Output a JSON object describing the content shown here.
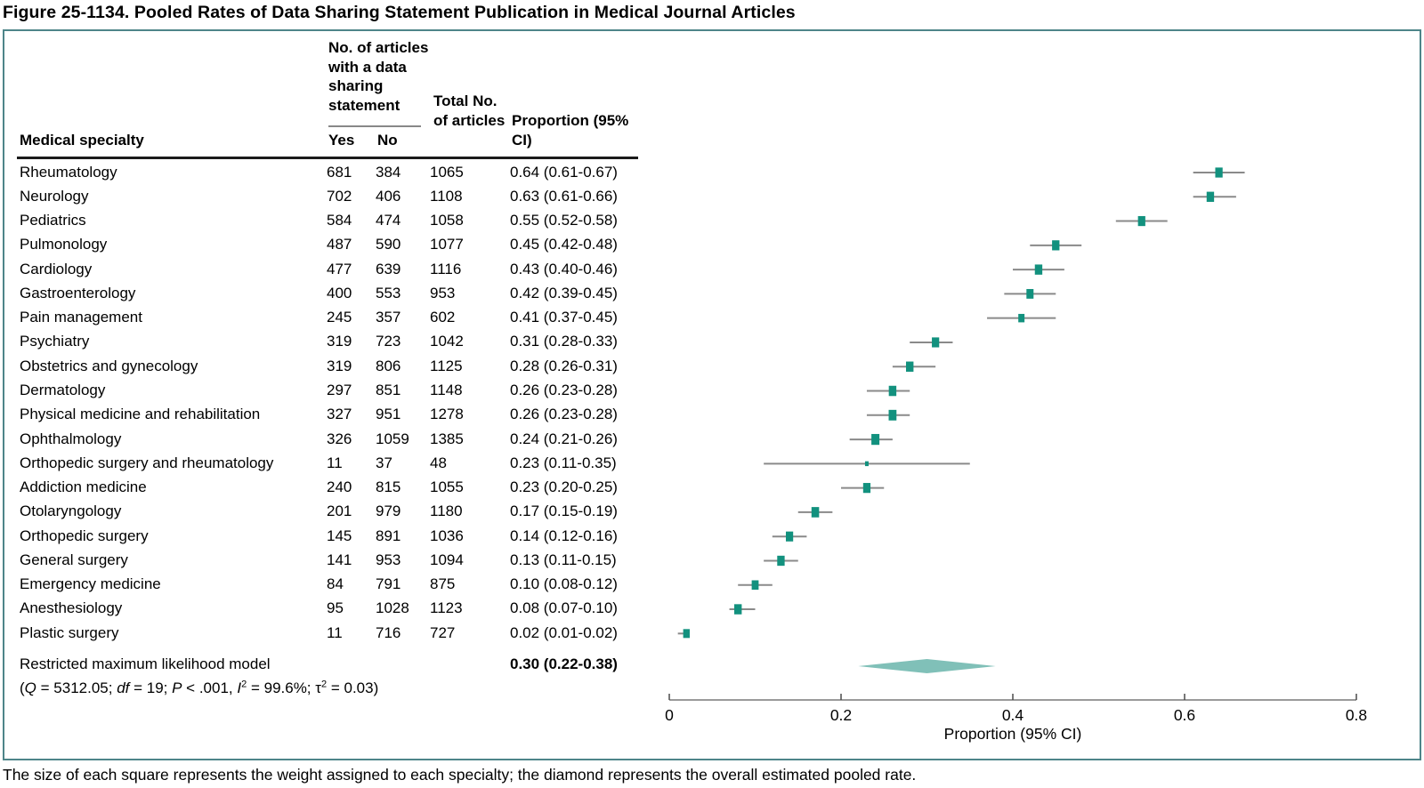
{
  "title": "Figure 25-1134. Pooled Rates of Data Sharing Statement Publication in Medical Journal Articles",
  "footnote": "The size of each square represents the weight assigned to each specialty; the diamond represents the overall estimated pooled rate.",
  "table": {
    "col_specialty": "Medical specialty",
    "col_group": "No. of articles with a data sharing statement",
    "col_yes": "Yes",
    "col_no": "No",
    "col_total": "Total No. of articles",
    "col_proportion": "Proportion (95% CI)"
  },
  "summary": {
    "label": "Restricted maximum likelihood model",
    "proportion_text": "0.30 (0.22-0.38)",
    "stats_segments": [
      [
        "(",
        false
      ],
      [
        "Q",
        true
      ],
      [
        " = 5312.05; ",
        false
      ],
      [
        "df",
        true
      ],
      [
        " = 19; ",
        false
      ],
      [
        "P",
        true
      ],
      [
        " < .001, ",
        false
      ],
      [
        "I",
        true
      ],
      [
        "SUP2",
        false
      ],
      [
        " = 99.6%; τ",
        false
      ],
      [
        "SUP2",
        false
      ],
      [
        " = 0.03)",
        false
      ]
    ]
  },
  "chart_data": {
    "type": "forest",
    "xlabel": "Proportion (95% CI)",
    "xlim": [
      0,
      0.8
    ],
    "xticks": [
      0,
      0.2,
      0.4,
      0.6,
      0.8
    ],
    "xtick_labels": [
      "0",
      "0.2",
      "0.4",
      "0.6",
      "0.8"
    ],
    "rows": [
      {
        "specialty": "Rheumatology",
        "yes": 681,
        "no": 384,
        "total": 1065,
        "proportion": 0.64,
        "ci_low": 0.61,
        "ci_high": 0.67,
        "ci_text": "0.64 (0.61-0.67)"
      },
      {
        "specialty": "Neurology",
        "yes": 702,
        "no": 406,
        "total": 1108,
        "proportion": 0.63,
        "ci_low": 0.61,
        "ci_high": 0.66,
        "ci_text": "0.63 (0.61-0.66)"
      },
      {
        "specialty": "Pediatrics",
        "yes": 584,
        "no": 474,
        "total": 1058,
        "proportion": 0.55,
        "ci_low": 0.52,
        "ci_high": 0.58,
        "ci_text": "0.55 (0.52-0.58)"
      },
      {
        "specialty": "Pulmonology",
        "yes": 487,
        "no": 590,
        "total": 1077,
        "proportion": 0.45,
        "ci_low": 0.42,
        "ci_high": 0.48,
        "ci_text": "0.45 (0.42-0.48)"
      },
      {
        "specialty": "Cardiology",
        "yes": 477,
        "no": 639,
        "total": 1116,
        "proportion": 0.43,
        "ci_low": 0.4,
        "ci_high": 0.46,
        "ci_text": "0.43 (0.40-0.46)"
      },
      {
        "specialty": "Gastroenterology",
        "yes": 400,
        "no": 553,
        "total": 953,
        "proportion": 0.42,
        "ci_low": 0.39,
        "ci_high": 0.45,
        "ci_text": "0.42 (0.39-0.45)"
      },
      {
        "specialty": "Pain management",
        "yes": 245,
        "no": 357,
        "total": 602,
        "proportion": 0.41,
        "ci_low": 0.37,
        "ci_high": 0.45,
        "ci_text": "0.41 (0.37-0.45)"
      },
      {
        "specialty": "Psychiatry",
        "yes": 319,
        "no": 723,
        "total": 1042,
        "proportion": 0.31,
        "ci_low": 0.28,
        "ci_high": 0.33,
        "ci_text": "0.31 (0.28-0.33)"
      },
      {
        "specialty": "Obstetrics and gynecology",
        "yes": 319,
        "no": 806,
        "total": 1125,
        "proportion": 0.28,
        "ci_low": 0.26,
        "ci_high": 0.31,
        "ci_text": "0.28 (0.26-0.31)"
      },
      {
        "specialty": "Dermatology",
        "yes": 297,
        "no": 851,
        "total": 1148,
        "proportion": 0.26,
        "ci_low": 0.23,
        "ci_high": 0.28,
        "ci_text": "0.26 (0.23-0.28)"
      },
      {
        "specialty": "Physical medicine and rehabilitation",
        "yes": 327,
        "no": 951,
        "total": 1278,
        "proportion": 0.26,
        "ci_low": 0.23,
        "ci_high": 0.28,
        "ci_text": "0.26 (0.23-0.28)"
      },
      {
        "specialty": "Ophthalmology",
        "yes": 326,
        "no": 1059,
        "total": 1385,
        "proportion": 0.24,
        "ci_low": 0.21,
        "ci_high": 0.26,
        "ci_text": "0.24 (0.21-0.26)"
      },
      {
        "specialty": "Orthopedic surgery and rheumatology",
        "yes": 11,
        "no": 37,
        "total": 48,
        "proportion": 0.23,
        "ci_low": 0.11,
        "ci_high": 0.35,
        "ci_text": "0.23 (0.11-0.35)"
      },
      {
        "specialty": "Addiction medicine",
        "yes": 240,
        "no": 815,
        "total": 1055,
        "proportion": 0.23,
        "ci_low": 0.2,
        "ci_high": 0.25,
        "ci_text": "0.23 (0.20-0.25)"
      },
      {
        "specialty": "Otolaryngology",
        "yes": 201,
        "no": 979,
        "total": 1180,
        "proportion": 0.17,
        "ci_low": 0.15,
        "ci_high": 0.19,
        "ci_text": "0.17 (0.15-0.19)"
      },
      {
        "specialty": "Orthopedic surgery",
        "yes": 145,
        "no": 891,
        "total": 1036,
        "proportion": 0.14,
        "ci_low": 0.12,
        "ci_high": 0.16,
        "ci_text": "0.14 (0.12-0.16)"
      },
      {
        "specialty": "General surgery",
        "yes": 141,
        "no": 953,
        "total": 1094,
        "proportion": 0.13,
        "ci_low": 0.11,
        "ci_high": 0.15,
        "ci_text": "0.13 (0.11-0.15)"
      },
      {
        "specialty": "Emergency medicine",
        "yes": 84,
        "no": 791,
        "total": 875,
        "proportion": 0.1,
        "ci_low": 0.08,
        "ci_high": 0.12,
        "ci_text": "0.10 (0.08-0.12)"
      },
      {
        "specialty": "Anesthesiology",
        "yes": 95,
        "no": 1028,
        "total": 1123,
        "proportion": 0.08,
        "ci_low": 0.07,
        "ci_high": 0.1,
        "ci_text": "0.08 (0.07-0.10)"
      },
      {
        "specialty": "Plastic surgery",
        "yes": 11,
        "no": 716,
        "total": 727,
        "proportion": 0.02,
        "ci_low": 0.01,
        "ci_high": 0.02,
        "ci_text": "0.02 (0.01-0.02)"
      }
    ],
    "pooled": {
      "label": "Restricted maximum likelihood model",
      "proportion": 0.3,
      "ci_low": 0.22,
      "ci_high": 0.38
    },
    "legend_position": "none",
    "grid": false,
    "colors": {
      "square": "#12917e",
      "diamond": "#80c0b8",
      "ci_line": "#8a8a8a",
      "axis_line": "#9a9a9a",
      "axis_tick": "#4a4a4a",
      "box_border": "#4e8589"
    }
  }
}
